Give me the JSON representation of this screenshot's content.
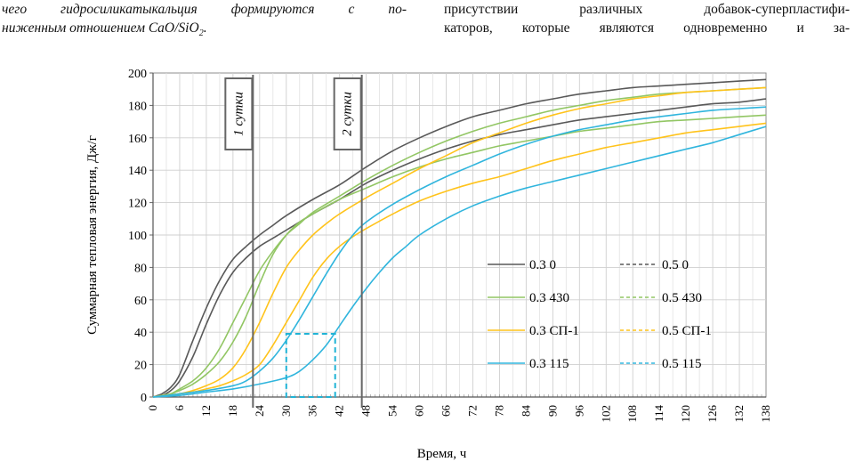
{
  "text": {
    "left_line1": "чего гидросиликатыкальция формируются с по-",
    "left_line2_pre": "ниженным отношением CaO/SiO",
    "left_line2_sub": "2",
    "left_line2_post": ".",
    "right_line1": "присутствии различных добавок-суперпластифи-",
    "right_line2": "каторов, которые являются одновременно и за-"
  },
  "chart_data": {
    "type": "line",
    "xlabel": "Время, ч",
    "ylabel": "Суммарная тепловая энергия, Дж/г",
    "xlim": [
      0,
      138
    ],
    "ylim": [
      0,
      200
    ],
    "x_ticks": [
      0,
      6,
      12,
      18,
      24,
      30,
      36,
      42,
      48,
      54,
      60,
      66,
      72,
      78,
      84,
      90,
      96,
      102,
      108,
      114,
      120,
      126,
      132,
      138
    ],
    "y_ticks": [
      0,
      20,
      40,
      60,
      80,
      100,
      120,
      140,
      160,
      180,
      200
    ],
    "grid": true,
    "annotations": [
      {
        "label": "1 сутки",
        "x": 22.5
      },
      {
        "label": "2 сутки",
        "x": 47
      }
    ],
    "dashed_box": {
      "x": [
        30,
        41
      ],
      "y": [
        0,
        39
      ]
    },
    "colors": {
      "gray": "#595959",
      "green": "#92c664",
      "yellow": "#ffc31b",
      "blue": "#30b5dd"
    },
    "series": [
      {
        "name": "0.3 0",
        "color": "gray",
        "dash": false,
        "points": [
          [
            0,
            0
          ],
          [
            2,
            1
          ],
          [
            4,
            4
          ],
          [
            6,
            10
          ],
          [
            9,
            25
          ],
          [
            12,
            45
          ],
          [
            15,
            63
          ],
          [
            18,
            77
          ],
          [
            21,
            86
          ],
          [
            24,
            93
          ],
          [
            27,
            98
          ],
          [
            30,
            103
          ],
          [
            36,
            113
          ],
          [
            42,
            122
          ],
          [
            48,
            132
          ],
          [
            54,
            140
          ],
          [
            60,
            147
          ],
          [
            66,
            153
          ],
          [
            72,
            158
          ],
          [
            78,
            162
          ],
          [
            84,
            165
          ],
          [
            90,
            168
          ],
          [
            96,
            171
          ],
          [
            102,
            173
          ],
          [
            108,
            175
          ],
          [
            114,
            177
          ],
          [
            120,
            179
          ],
          [
            126,
            181
          ],
          [
            132,
            182
          ],
          [
            138,
            184
          ]
        ]
      },
      {
        "name": "0.5 0",
        "color": "gray",
        "dash": true,
        "points": [
          [
            0,
            0
          ],
          [
            2,
            2
          ],
          [
            4,
            6
          ],
          [
            6,
            14
          ],
          [
            9,
            35
          ],
          [
            12,
            55
          ],
          [
            15,
            72
          ],
          [
            18,
            85
          ],
          [
            21,
            93
          ],
          [
            24,
            100
          ],
          [
            27,
            106
          ],
          [
            30,
            112
          ],
          [
            36,
            122
          ],
          [
            42,
            131
          ],
          [
            48,
            142
          ],
          [
            54,
            152
          ],
          [
            60,
            160
          ],
          [
            66,
            167
          ],
          [
            72,
            173
          ],
          [
            78,
            177
          ],
          [
            84,
            181
          ],
          [
            90,
            184
          ],
          [
            96,
            187
          ],
          [
            102,
            189
          ],
          [
            108,
            191
          ],
          [
            114,
            192
          ],
          [
            120,
            193
          ],
          [
            126,
            194
          ],
          [
            132,
            195
          ],
          [
            138,
            196
          ]
        ]
      },
      {
        "name": "0.3 430",
        "color": "green",
        "dash": false,
        "points": [
          [
            0,
            0
          ],
          [
            2,
            1
          ],
          [
            4,
            2
          ],
          [
            6,
            4
          ],
          [
            9,
            8
          ],
          [
            12,
            14
          ],
          [
            15,
            22
          ],
          [
            18,
            34
          ],
          [
            21,
            50
          ],
          [
            24,
            70
          ],
          [
            27,
            88
          ],
          [
            30,
            100
          ],
          [
            33,
            108
          ],
          [
            36,
            113
          ],
          [
            42,
            122
          ],
          [
            48,
            129
          ],
          [
            54,
            136
          ],
          [
            60,
            142
          ],
          [
            66,
            147
          ],
          [
            72,
            151
          ],
          [
            78,
            155
          ],
          [
            84,
            158
          ],
          [
            90,
            161
          ],
          [
            96,
            164
          ],
          [
            102,
            166
          ],
          [
            108,
            168
          ],
          [
            114,
            170
          ],
          [
            120,
            171
          ],
          [
            126,
            172
          ],
          [
            132,
            173
          ],
          [
            138,
            174
          ]
        ]
      },
      {
        "name": "0.5 430",
        "color": "green",
        "dash": true,
        "points": [
          [
            0,
            0
          ],
          [
            2,
            1
          ],
          [
            4,
            2
          ],
          [
            6,
            5
          ],
          [
            9,
            10
          ],
          [
            12,
            18
          ],
          [
            15,
            30
          ],
          [
            18,
            46
          ],
          [
            21,
            62
          ],
          [
            24,
            78
          ],
          [
            27,
            90
          ],
          [
            30,
            100
          ],
          [
            33,
            107
          ],
          [
            36,
            114
          ],
          [
            42,
            124
          ],
          [
            48,
            134
          ],
          [
            54,
            143
          ],
          [
            60,
            151
          ],
          [
            66,
            158
          ],
          [
            72,
            164
          ],
          [
            78,
            169
          ],
          [
            84,
            173
          ],
          [
            90,
            177
          ],
          [
            96,
            180
          ],
          [
            102,
            183
          ],
          [
            108,
            185
          ],
          [
            114,
            187
          ],
          [
            120,
            188
          ],
          [
            126,
            189
          ],
          [
            132,
            190
          ],
          [
            138,
            191
          ]
        ]
      },
      {
        "name": "0.3 СП-1",
        "color": "yellow",
        "dash": false,
        "points": [
          [
            0,
            0
          ],
          [
            3,
            1
          ],
          [
            6,
            2
          ],
          [
            9,
            3
          ],
          [
            12,
            5
          ],
          [
            15,
            7
          ],
          [
            18,
            10
          ],
          [
            21,
            14
          ],
          [
            24,
            20
          ],
          [
            27,
            32
          ],
          [
            30,
            46
          ],
          [
            33,
            60
          ],
          [
            36,
            74
          ],
          [
            39,
            85
          ],
          [
            42,
            93
          ],
          [
            45,
            99
          ],
          [
            48,
            104
          ],
          [
            54,
            113
          ],
          [
            60,
            121
          ],
          [
            66,
            127
          ],
          [
            72,
            132
          ],
          [
            78,
            136
          ],
          [
            84,
            141
          ],
          [
            90,
            146
          ],
          [
            96,
            150
          ],
          [
            102,
            154
          ],
          [
            108,
            157
          ],
          [
            114,
            160
          ],
          [
            120,
            163
          ],
          [
            126,
            165
          ],
          [
            132,
            167
          ],
          [
            138,
            169
          ]
        ]
      },
      {
        "name": "0.5 СП-1",
        "color": "yellow",
        "dash": true,
        "points": [
          [
            0,
            0
          ],
          [
            3,
            1
          ],
          [
            6,
            2
          ],
          [
            9,
            4
          ],
          [
            12,
            7
          ],
          [
            15,
            11
          ],
          [
            18,
            18
          ],
          [
            21,
            30
          ],
          [
            24,
            46
          ],
          [
            27,
            64
          ],
          [
            30,
            80
          ],
          [
            33,
            91
          ],
          [
            36,
            100
          ],
          [
            39,
            107
          ],
          [
            42,
            113
          ],
          [
            48,
            123
          ],
          [
            54,
            132
          ],
          [
            60,
            141
          ],
          [
            66,
            149
          ],
          [
            72,
            157
          ],
          [
            78,
            163
          ],
          [
            84,
            169
          ],
          [
            90,
            174
          ],
          [
            96,
            178
          ],
          [
            102,
            181
          ],
          [
            108,
            184
          ],
          [
            114,
            186
          ],
          [
            120,
            188
          ],
          [
            126,
            189
          ],
          [
            132,
            190
          ],
          [
            138,
            191
          ]
        ]
      },
      {
        "name": "0.3 115",
        "color": "blue",
        "dash": false,
        "points": [
          [
            0,
            0
          ],
          [
            6,
            1
          ],
          [
            12,
            3
          ],
          [
            18,
            5
          ],
          [
            24,
            8
          ],
          [
            30,
            12
          ],
          [
            33,
            16
          ],
          [
            36,
            23
          ],
          [
            39,
            32
          ],
          [
            42,
            44
          ],
          [
            45,
            56
          ],
          [
            48,
            67
          ],
          [
            51,
            77
          ],
          [
            54,
            86
          ],
          [
            57,
            93
          ],
          [
            60,
            100
          ],
          [
            66,
            110
          ],
          [
            72,
            118
          ],
          [
            78,
            124
          ],
          [
            84,
            129
          ],
          [
            90,
            133
          ],
          [
            96,
            137
          ],
          [
            102,
            141
          ],
          [
            108,
            145
          ],
          [
            114,
            149
          ],
          [
            120,
            153
          ],
          [
            126,
            157
          ],
          [
            132,
            162
          ],
          [
            138,
            167
          ]
        ]
      },
      {
        "name": "0.5 115",
        "color": "blue",
        "dash": true,
        "points": [
          [
            0,
            0
          ],
          [
            6,
            2
          ],
          [
            12,
            4
          ],
          [
            18,
            7
          ],
          [
            21,
            10
          ],
          [
            24,
            16
          ],
          [
            27,
            24
          ],
          [
            30,
            35
          ],
          [
            33,
            48
          ],
          [
            36,
            62
          ],
          [
            39,
            76
          ],
          [
            42,
            89
          ],
          [
            45,
            100
          ],
          [
            48,
            108
          ],
          [
            54,
            119
          ],
          [
            60,
            128
          ],
          [
            66,
            136
          ],
          [
            72,
            143
          ],
          [
            78,
            150
          ],
          [
            84,
            156
          ],
          [
            90,
            161
          ],
          [
            96,
            165
          ],
          [
            102,
            168
          ],
          [
            108,
            171
          ],
          [
            114,
            173
          ],
          [
            120,
            175
          ],
          [
            126,
            177
          ],
          [
            132,
            178
          ],
          [
            138,
            179
          ]
        ]
      }
    ]
  }
}
